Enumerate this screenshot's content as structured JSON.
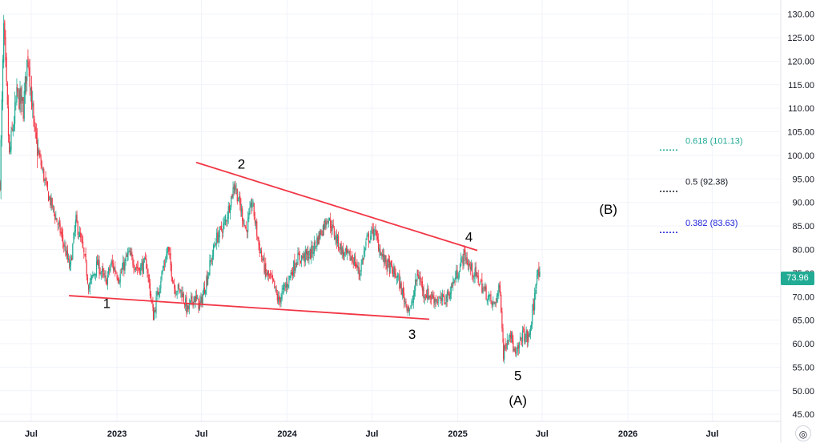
{
  "chart_data": {
    "type": "candlestick",
    "title": "",
    "xlabel": "",
    "ylabel": "",
    "ylim": [
      43.5,
      133.0
    ],
    "x_range": [
      "2022-04-25",
      "2026-11-25"
    ],
    "grid": true,
    "y_ticks": [
      "45.00",
      "50.00",
      "55.00",
      "60.00",
      "65.00",
      "70.00",
      "75.00",
      "80.00",
      "85.00",
      "90.00",
      "95.00",
      "100.00",
      "105.00",
      "110.00",
      "115.00",
      "120.00",
      "125.00",
      "130.00"
    ],
    "x_ticks": [
      {
        "label": "Jul",
        "date": "2022-07-01"
      },
      {
        "label": "2023",
        "date": "2023-01-01"
      },
      {
        "label": "Jul",
        "date": "2023-07-01"
      },
      {
        "label": "2024",
        "date": "2024-01-01"
      },
      {
        "label": "Jul",
        "date": "2024-07-01"
      },
      {
        "label": "2025",
        "date": "2025-01-01"
      },
      {
        "label": "Jul",
        "date": "2025-07-01"
      },
      {
        "label": "2026",
        "date": "2026-01-01"
      },
      {
        "label": "Jul",
        "date": "2026-07-01"
      }
    ],
    "price_path": [
      [
        "2022-04-25",
        94
      ],
      [
        "2022-05-03",
        127
      ],
      [
        "2022-05-15",
        100
      ],
      [
        "2022-06-01",
        113
      ],
      [
        "2022-06-14",
        110
      ],
      [
        "2022-06-24",
        122
      ],
      [
        "2022-07-08",
        104
      ],
      [
        "2022-07-22",
        98
      ],
      [
        "2022-08-05",
        92
      ],
      [
        "2022-09-01",
        84
      ],
      [
        "2022-09-22",
        76
      ],
      [
        "2022-10-05",
        86
      ],
      [
        "2022-10-20",
        80
      ],
      [
        "2022-11-02",
        72
      ],
      [
        "2022-11-20",
        77
      ],
      [
        "2022-12-08",
        73
      ],
      [
        "2022-12-20",
        77
      ],
      [
        "2023-01-06",
        74
      ],
      [
        "2023-01-25",
        79
      ],
      [
        "2023-02-15",
        76
      ],
      [
        "2023-03-05",
        77
      ],
      [
        "2023-03-20",
        66
      ],
      [
        "2023-04-05",
        74
      ],
      [
        "2023-04-20",
        80
      ],
      [
        "2023-05-04",
        72
      ],
      [
        "2023-05-20",
        71
      ],
      [
        "2023-06-01",
        67
      ],
      [
        "2023-06-15",
        70
      ],
      [
        "2023-06-28",
        68
      ],
      [
        "2023-07-13",
        74
      ],
      [
        "2023-08-01",
        82
      ],
      [
        "2023-08-22",
        86
      ],
      [
        "2023-09-10",
        94
      ],
      [
        "2023-09-25",
        88
      ],
      [
        "2023-10-05",
        84
      ],
      [
        "2023-10-18",
        90
      ],
      [
        "2023-11-01",
        81
      ],
      [
        "2023-11-16",
        75
      ],
      [
        "2023-12-01",
        73
      ],
      [
        "2023-12-13",
        69
      ],
      [
        "2023-12-28",
        72
      ],
      [
        "2024-01-22",
        78
      ],
      [
        "2024-02-20",
        79
      ],
      [
        "2024-03-10",
        83
      ],
      [
        "2024-03-28",
        87
      ],
      [
        "2024-04-12",
        83
      ],
      [
        "2024-05-01",
        79
      ],
      [
        "2024-05-22",
        78
      ],
      [
        "2024-06-04",
        75
      ],
      [
        "2024-06-20",
        82
      ],
      [
        "2024-07-05",
        84
      ],
      [
        "2024-07-25",
        78
      ],
      [
        "2024-08-09",
        76
      ],
      [
        "2024-08-25",
        74
      ],
      [
        "2024-09-10",
        69
      ],
      [
        "2024-09-22",
        67
      ],
      [
        "2024-10-07",
        75
      ],
      [
        "2024-10-20",
        71
      ],
      [
        "2024-11-05",
        70
      ],
      [
        "2024-11-25",
        69
      ],
      [
        "2024-12-10",
        70
      ],
      [
        "2024-12-27",
        74
      ],
      [
        "2025-01-15",
        79
      ],
      [
        "2025-01-28",
        76
      ],
      [
        "2025-02-12",
        74
      ],
      [
        "2025-03-01",
        71
      ],
      [
        "2025-03-18",
        68
      ],
      [
        "2025-04-02",
        72
      ],
      [
        "2025-04-09",
        58
      ],
      [
        "2025-04-22",
        63
      ],
      [
        "2025-05-05",
        57
      ],
      [
        "2025-05-20",
        62
      ],
      [
        "2025-06-02",
        61
      ],
      [
        "2025-06-13",
        68
      ],
      [
        "2025-06-20",
        75
      ],
      [
        "2025-06-27",
        73.96
      ]
    ],
    "last_price": "73.96",
    "trendlines": [
      {
        "from": [
          "2023-06-20",
          98.5
        ],
        "to": [
          "2025-02-12",
          79.8
        ],
        "color": "#f23645"
      },
      {
        "from": [
          "2022-09-20",
          70.2
        ],
        "to": [
          "2024-11-01",
          65.2
        ],
        "color": "#f23645"
      }
    ],
    "fib_levels": [
      {
        "label": "0.618 (101.13)",
        "value": 101.13,
        "color": "#22ab94"
      },
      {
        "label": "0.5 (92.38)",
        "value": 92.38,
        "color": "#131722"
      },
      {
        "label": "0.382 (83.63)",
        "value": 83.63,
        "color": "#1e22d6"
      }
    ],
    "wave_labels": [
      {
        "label": "1",
        "date": "2022-12-10",
        "value": 67.6
      },
      {
        "label": "2",
        "date": "2023-09-25",
        "value": 97.2
      },
      {
        "label": "3",
        "date": "2024-09-25",
        "value": 61.0
      },
      {
        "label": "4",
        "date": "2025-01-25",
        "value": 81.7
      },
      {
        "label": "5",
        "date": "2025-05-10",
        "value": 52.3
      },
      {
        "label": "(A)",
        "date": "2025-05-10",
        "value": 47.0
      },
      {
        "label": "(B)",
        "date": "2025-11-20",
        "value": 87.6
      }
    ],
    "colors": {
      "up": "#22ab94",
      "down": "#f23645",
      "grid": "#f0f3fa",
      "trendline": "#f23645"
    }
  },
  "ui": {
    "price_badge": "73.96",
    "settings_icon": "settings-icon"
  }
}
